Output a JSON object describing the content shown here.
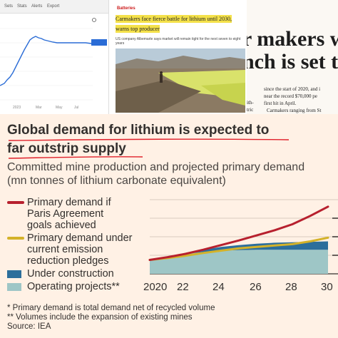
{
  "stock_panel": {
    "tabs": [
      "Sets",
      "Stats",
      "Alerts",
      "Export"
    ],
    "price_badge": "",
    "x_labels": [
      "2023",
      "Mar",
      "May",
      "Jul"
    ],
    "line_color": "#2a6cd6"
  },
  "news_panel": {
    "section": "Batteries",
    "headline": "Carmakers face fierce battle for lithium until 2030, warns top producer",
    "subhead": "US company Albemarle says market will remain tight for the next seven to eight years",
    "highlight_color": "#f4e14a"
  },
  "newspaper_panel": {
    "headline_line1": "r makers wa",
    "headline_line2": "nch is set to",
    "body_lines": [
      "since the start of 2020, and i",
      "near the record $70,000 pe",
      "first hit in April.",
      "Carmakers ranging from St"
    ],
    "side_lines": [
      "ith-",
      "tric"
    ]
  },
  "ft_chart": {
    "title_line1": "Global demand for lithium is expected to",
    "title_line2": "far outstrip supply",
    "subtitle_line1": "Committed mine production and projected primary demand",
    "subtitle_line2": "(mn tonnes of lithium carbonate equivalent)",
    "legend": {
      "paris": "Primary demand if Paris Agreement goals achieved",
      "paris_l1": "Primary demand if",
      "paris_l2": "Paris Agreement",
      "paris_l3": "goals achieved",
      "current": "Primary demand under current emission reduction pledges",
      "current_l1": "Primary demand under",
      "current_l2": "current emission",
      "current_l3": "reduction pledges",
      "construction": "Under construction",
      "operating": "Operating projects**"
    },
    "x_ticks": [
      "2020",
      "22",
      "24",
      "26",
      "28",
      "30"
    ],
    "notes": [
      "* Primary demand is total demand net of recycled volume",
      "** Volumes include the expansion of existing mines",
      "Source: IEA"
    ],
    "colors": {
      "paris": "#b7202e",
      "current": "#d4b229",
      "construction": "#2c6e9b",
      "operating": "#9ec6c6",
      "background": "#fff1e5"
    }
  },
  "chart_data": {
    "type": "area",
    "x": [
      2020,
      2021,
      2022,
      2023,
      2024,
      2025,
      2026,
      2027,
      2028,
      2029,
      2030
    ],
    "xlim": [
      2020,
      2030
    ],
    "ylim": [
      0,
      1.6
    ],
    "series": [
      {
        "name": "Operating projects**",
        "kind": "area",
        "values": [
          0.3,
          0.37,
          0.43,
          0.47,
          0.5,
          0.51,
          0.52,
          0.52,
          0.52,
          0.52,
          0.52
        ]
      },
      {
        "name": "Under construction",
        "kind": "area",
        "values": [
          0.0,
          0.0,
          0.02,
          0.05,
          0.08,
          0.11,
          0.13,
          0.15,
          0.16,
          0.17,
          0.18
        ]
      },
      {
        "name": "Primary demand if Paris Agreement goals achieved",
        "kind": "line",
        "values": [
          0.3,
          0.36,
          0.43,
          0.52,
          0.62,
          0.72,
          0.83,
          0.94,
          1.07,
          1.25,
          1.45
        ]
      },
      {
        "name": "Primary demand under current emission reduction pledges",
        "kind": "line",
        "values": [
          0.3,
          0.34,
          0.39,
          0.45,
          0.5,
          0.55,
          0.58,
          0.61,
          0.64,
          0.7,
          0.78
        ]
      }
    ]
  }
}
